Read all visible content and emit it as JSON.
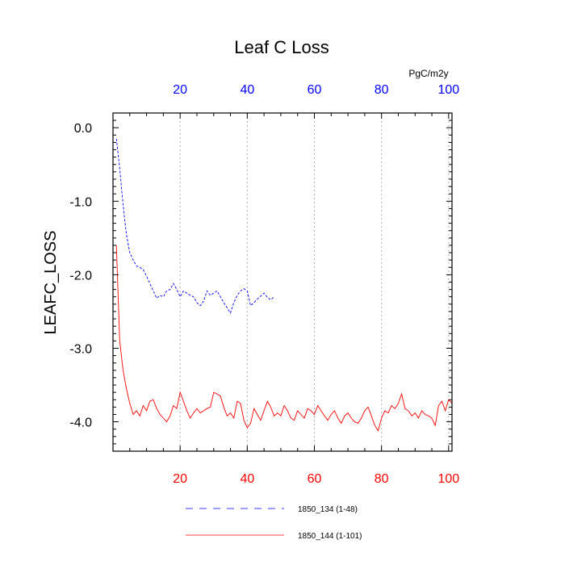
{
  "chart_data": {
    "type": "line",
    "title": "Leaf C Loss",
    "ylabel": "LEAFC_LOSS",
    "units": "PgC/m2y",
    "xlim": [
      0,
      101
    ],
    "ylim": [
      -4.4,
      0.2
    ],
    "x_ticks": [
      20,
      40,
      60,
      80,
      100
    ],
    "y_ticks": [
      0.0,
      -1.0,
      -2.0,
      -3.0,
      -4.0
    ],
    "y_tick_labels": [
      "0.0",
      "-1.0",
      "-2.0",
      "-3.0",
      "-4.0"
    ],
    "grid": "vertical dotted",
    "legend_position": "bottom",
    "series": [
      {
        "name": "1850_134 (1-48)",
        "color": "#0000ff",
        "dash": "dashed",
        "axis": "top",
        "x": [
          1,
          2,
          3,
          4,
          5,
          6,
          7,
          8,
          9,
          10,
          11,
          12,
          13,
          14,
          15,
          16,
          17,
          18,
          19,
          20,
          21,
          22,
          23,
          24,
          25,
          26,
          27,
          28,
          29,
          30,
          31,
          32,
          33,
          34,
          35,
          36,
          37,
          38,
          39,
          40,
          41,
          42,
          43,
          44,
          45,
          46,
          47,
          48
        ],
        "y": [
          -0.15,
          -0.55,
          -1.05,
          -1.45,
          -1.7,
          -1.8,
          -1.88,
          -1.9,
          -1.93,
          -2.02,
          -2.12,
          -2.22,
          -2.32,
          -2.28,
          -2.3,
          -2.22,
          -2.2,
          -2.12,
          -2.2,
          -2.3,
          -2.22,
          -2.25,
          -2.28,
          -2.3,
          -2.38,
          -2.42,
          -2.36,
          -2.22,
          -2.28,
          -2.25,
          -2.22,
          -2.3,
          -2.38,
          -2.45,
          -2.52,
          -2.38,
          -2.28,
          -2.22,
          -2.19,
          -2.22,
          -2.42,
          -2.38,
          -2.33,
          -2.29,
          -2.25,
          -2.31,
          -2.34,
          -2.3
        ]
      },
      {
        "name": "1850_144 (1-101)",
        "color": "#ff0000",
        "dash": "solid",
        "axis": "bottom",
        "x": [
          1,
          2,
          3,
          4,
          5,
          6,
          7,
          8,
          9,
          10,
          11,
          12,
          13,
          14,
          15,
          16,
          17,
          18,
          19,
          20,
          21,
          22,
          23,
          24,
          25,
          26,
          27,
          28,
          29,
          30,
          31,
          32,
          33,
          34,
          35,
          36,
          37,
          38,
          39,
          40,
          41,
          42,
          43,
          44,
          45,
          46,
          47,
          48,
          49,
          50,
          51,
          52,
          53,
          54,
          55,
          56,
          57,
          58,
          59,
          60,
          61,
          62,
          63,
          64,
          65,
          66,
          67,
          68,
          69,
          70,
          71,
          72,
          73,
          74,
          75,
          76,
          77,
          78,
          79,
          80,
          81,
          82,
          83,
          84,
          85,
          86,
          87,
          88,
          89,
          90,
          91,
          92,
          93,
          94,
          95,
          96,
          97,
          98,
          99,
          100,
          101
        ],
        "y": [
          -1.6,
          -2.9,
          -3.3,
          -3.55,
          -3.75,
          -3.9,
          -3.85,
          -3.92,
          -3.78,
          -3.85,
          -3.72,
          -3.7,
          -3.82,
          -3.9,
          -3.95,
          -4.0,
          -3.92,
          -3.78,
          -3.82,
          -3.6,
          -3.72,
          -3.85,
          -3.95,
          -3.88,
          -3.82,
          -3.88,
          -3.85,
          -3.82,
          -3.8,
          -3.6,
          -3.62,
          -3.65,
          -3.8,
          -3.92,
          -3.88,
          -3.95,
          -3.72,
          -3.75,
          -3.98,
          -4.08,
          -4.02,
          -3.82,
          -3.9,
          -3.98,
          -3.85,
          -3.72,
          -3.8,
          -3.92,
          -3.88,
          -3.92,
          -3.78,
          -3.85,
          -3.95,
          -3.98,
          -3.85,
          -3.9,
          -3.95,
          -3.82,
          -3.85,
          -3.9,
          -3.78,
          -3.85,
          -3.92,
          -3.98,
          -3.9,
          -3.85,
          -3.95,
          -4.02,
          -3.92,
          -3.88,
          -3.95,
          -4.0,
          -4.02,
          -3.95,
          -3.85,
          -3.8,
          -3.92,
          -4.05,
          -4.12,
          -3.95,
          -3.85,
          -3.88,
          -3.78,
          -3.82,
          -3.75,
          -3.62,
          -3.82,
          -3.85,
          -3.92,
          -3.88,
          -3.95,
          -3.85,
          -3.9,
          -3.92,
          -3.95,
          -4.05,
          -3.78,
          -3.72,
          -3.85,
          -3.7,
          -3.75
        ]
      }
    ]
  }
}
